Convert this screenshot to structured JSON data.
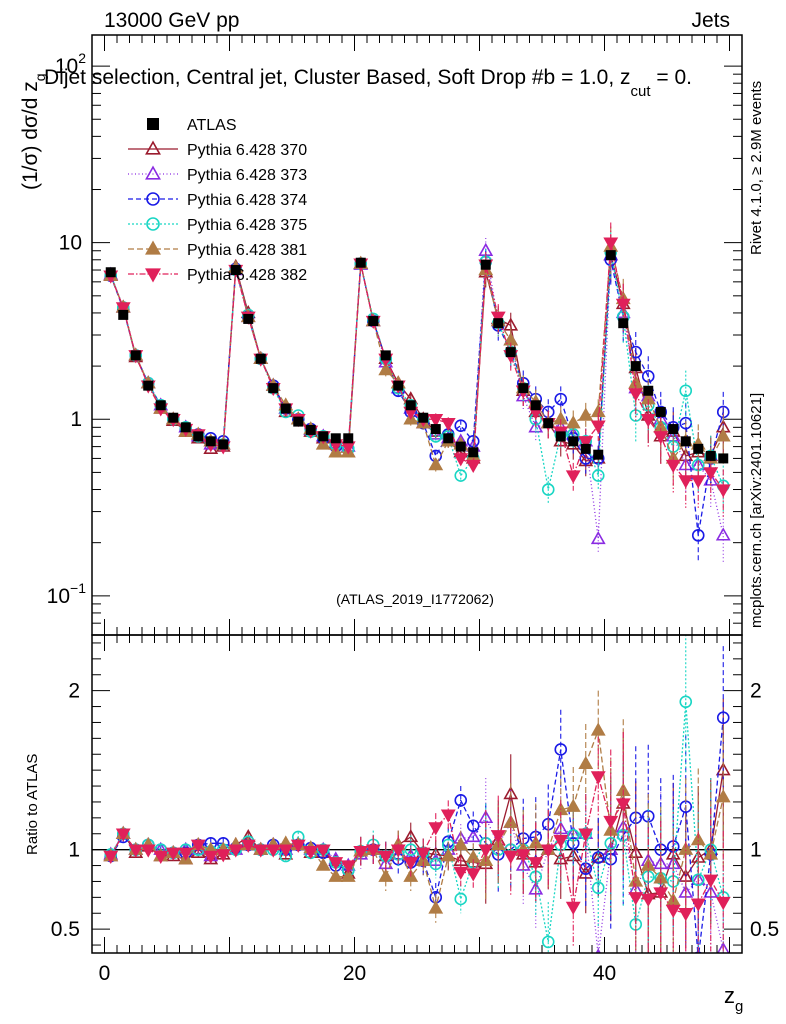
{
  "header": {
    "energy": "13000 GeV pp",
    "category": "Jets",
    "selection": "Dijet selection, Central jet, Cluster Based, Soft Drop #b = 1.0, z",
    "selection_sub": "cut",
    "selection_tail": " = 0.",
    "watermark_top": "Rivet 4.1.0, ≥ 2.9M events",
    "watermark_bottom": "mcplots.cern.ch [arXiv:2401.10621]",
    "analysis_id": "(ATLAS_2019_I1772062)"
  },
  "colors": {
    "ATLAS": "#000000",
    "p370": "#9b1b2e",
    "p373": "#8a2be2",
    "p374": "#1a1ae6",
    "p375": "#19d6c4",
    "p381": "#b07c45",
    "p382": "#e0205a"
  },
  "chart_data": [
    {
      "type": "scatter",
      "name": "main",
      "ylabel": "(1/σ) dσ/d z",
      "ylabel_sub": "g",
      "yscale": "log",
      "ylim": [
        0.06,
        150
      ],
      "xlim": [
        -1,
        51
      ],
      "yticks": [
        {
          "v": 0.1,
          "base": "10",
          "exp": "−1"
        },
        {
          "v": 1,
          "base": "1",
          "exp": ""
        },
        {
          "v": 10,
          "base": "10",
          "exp": ""
        },
        {
          "v": 100,
          "base": "10",
          "exp": "2"
        }
      ],
      "legend": [
        {
          "key": "ATLAS",
          "label": "ATLAS"
        },
        {
          "key": "p370",
          "label": "Pythia 6.428 370"
        },
        {
          "key": "p373",
          "label": "Pythia 6.428 373"
        },
        {
          "key": "p374",
          "label": "Pythia 6.428 374"
        },
        {
          "key": "p375",
          "label": "Pythia 6.428 375"
        },
        {
          "key": "p381",
          "label": "Pythia 6.428 381"
        },
        {
          "key": "p382",
          "label": "Pythia 6.428 382"
        }
      ],
      "x": [
        0.5,
        1.5,
        2.5,
        3.5,
        4.5,
        5.5,
        6.5,
        7.5,
        8.5,
        9.5,
        10.5,
        11.5,
        12.5,
        13.5,
        14.5,
        15.5,
        16.5,
        17.5,
        18.5,
        19.5,
        20.5,
        21.5,
        22.5,
        23.5,
        24.5,
        25.5,
        26.5,
        27.5,
        28.5,
        29.5,
        30.5,
        31.5,
        32.5,
        33.5,
        34.5,
        35.5,
        36.5,
        37.5,
        38.5,
        39.5,
        40.5,
        41.5,
        42.5,
        43.5,
        44.5,
        45.5,
        46.5,
        47.5,
        48.5,
        49.5
      ],
      "series": [
        {
          "key": "ATLAS",
          "values": [
            6.8,
            3.9,
            2.3,
            1.55,
            1.2,
            1.02,
            0.9,
            0.8,
            0.75,
            0.72,
            7.0,
            3.7,
            2.2,
            1.5,
            1.15,
            0.97,
            0.87,
            0.8,
            0.78,
            0.78,
            7.7,
            3.6,
            2.3,
            1.55,
            1.2,
            1.02,
            0.88,
            0.78,
            0.7,
            0.65,
            7.5,
            3.5,
            2.4,
            1.5,
            1.2,
            0.95,
            0.8,
            0.75,
            0.68,
            0.63,
            8.5,
            3.5,
            2.0,
            1.45,
            1.1,
            0.88,
            0.75,
            0.68,
            0.62,
            0.6
          ]
        },
        {
          "key": "p370",
          "values": [
            6.5,
            4.3,
            2.25,
            1.6,
            1.15,
            0.98,
            0.85,
            0.78,
            0.68,
            0.7,
            7.3,
            4.0,
            2.2,
            1.55,
            1.1,
            1.0,
            0.85,
            0.78,
            0.72,
            0.65,
            7.6,
            3.6,
            2.2,
            1.6,
            1.3,
            1.0,
            0.85,
            0.75,
            0.65,
            0.6,
            6.8,
            3.7,
            3.4,
            1.45,
            1.1,
            0.95,
            0.75,
            0.72,
            0.58,
            0.6,
            8.5,
            4.5,
            1.95,
            1.05,
            0.8,
            0.85,
            0.62,
            0.65,
            0.62,
            0.9
          ]
        },
        {
          "key": "p373",
          "values": [
            6.6,
            4.3,
            2.3,
            1.6,
            1.2,
            1.0,
            0.9,
            0.8,
            0.72,
            0.72,
            7.0,
            3.8,
            2.2,
            1.55,
            1.15,
            1.0,
            0.87,
            0.8,
            0.73,
            0.7,
            7.5,
            3.6,
            2.1,
            1.5,
            1.15,
            0.95,
            0.82,
            0.78,
            0.75,
            0.7,
            9.0,
            3.6,
            2.8,
            1.35,
            0.9,
            0.95,
            0.9,
            0.82,
            0.75,
            0.21,
            8.5,
            4.0,
            1.5,
            1.35,
            1.0,
            0.8,
            0.55,
            0.55,
            0.45,
            0.22
          ]
        },
        {
          "key": "p374",
          "values": [
            6.5,
            4.2,
            2.3,
            1.6,
            1.2,
            1.0,
            0.88,
            0.82,
            0.78,
            0.75,
            7.1,
            3.8,
            2.2,
            1.55,
            1.15,
            1.0,
            0.88,
            0.78,
            0.7,
            0.68,
            7.6,
            3.6,
            2.2,
            1.45,
            1.1,
            0.95,
            0.62,
            0.82,
            0.92,
            0.75,
            7.8,
            3.4,
            2.4,
            1.6,
            1.3,
            1.1,
            1.3,
            0.78,
            0.6,
            0.6,
            8.0,
            3.8,
            2.4,
            1.75,
            1.1,
            0.9,
            0.95,
            0.22,
            0.6,
            1.1
          ]
        },
        {
          "key": "p375",
          "values": [
            6.6,
            4.3,
            2.3,
            1.6,
            1.2,
            1.0,
            0.9,
            0.8,
            0.74,
            0.72,
            7.0,
            3.9,
            2.2,
            1.5,
            1.1,
            1.05,
            0.85,
            0.8,
            0.72,
            0.68,
            7.6,
            3.7,
            2.2,
            1.5,
            1.2,
            1.0,
            0.8,
            0.8,
            0.48,
            0.6,
            7.8,
            3.5,
            2.4,
            1.5,
            1.0,
            0.4,
            0.82,
            0.82,
            0.75,
            0.48,
            8.8,
            3.8,
            1.05,
            1.2,
            0.9,
            0.7,
            1.45,
            0.55,
            0.62,
            0.42
          ]
        },
        {
          "key": "p381",
          "values": [
            6.5,
            4.3,
            2.3,
            1.6,
            1.15,
            1.0,
            0.85,
            0.82,
            0.75,
            0.72,
            7.2,
            3.8,
            2.2,
            1.55,
            1.2,
            1.0,
            0.88,
            0.72,
            0.65,
            0.65,
            7.6,
            3.6,
            1.9,
            1.6,
            1.0,
            0.95,
            0.55,
            0.75,
            0.72,
            0.62,
            7.0,
            3.6,
            2.8,
            1.5,
            1.25,
            0.95,
            1.0,
            0.95,
            1.05,
            1.1,
            9.5,
            4.8,
            1.6,
            1.3,
            0.9,
            0.6,
            0.75,
            0.72,
            0.6,
            0.8
          ]
        },
        {
          "key": "p382",
          "values": [
            6.5,
            4.3,
            2.3,
            1.55,
            1.15,
            1.0,
            0.88,
            0.82,
            0.72,
            0.7,
            7.0,
            3.8,
            2.2,
            1.5,
            1.15,
            1.0,
            0.86,
            0.8,
            0.72,
            0.7,
            7.6,
            3.6,
            2.2,
            1.55,
            1.1,
            1.0,
            1.0,
            0.95,
            0.6,
            0.55,
            7.5,
            3.8,
            2.3,
            1.45,
            1.1,
            0.95,
            0.85,
            0.48,
            0.75,
            0.92,
            10.0,
            4.5,
            1.4,
            1.0,
            0.8,
            0.55,
            0.45,
            0.45,
            0.5,
            0.4
          ]
        }
      ]
    },
    {
      "type": "scatter",
      "name": "ratio",
      "ylabel": "Ratio to ATLAS",
      "xlabel": "z",
      "xlabel_sub": "g",
      "ylim": [
        0.35,
        2.35
      ],
      "xlim": [
        -1,
        51
      ],
      "reference_line": 1,
      "yticks": [
        0.5,
        1,
        2
      ],
      "xticks": [
        0,
        20,
        40
      ],
      "x": [
        0.5,
        1.5,
        2.5,
        3.5,
        4.5,
        5.5,
        6.5,
        7.5,
        8.5,
        9.5,
        10.5,
        11.5,
        12.5,
        13.5,
        14.5,
        15.5,
        16.5,
        17.5,
        18.5,
        19.5,
        20.5,
        21.5,
        22.5,
        23.5,
        24.5,
        25.5,
        26.5,
        27.5,
        28.5,
        29.5,
        30.5,
        31.5,
        32.5,
        33.5,
        34.5,
        35.5,
        36.5,
        37.5,
        38.5,
        39.5,
        40.5,
        41.5,
        42.5,
        43.5,
        44.5,
        45.5,
        46.5,
        47.5,
        48.5,
        49.5
      ],
      "series": [
        {
          "key": "p370",
          "values": [
            0.96,
            1.1,
            0.98,
            1.02,
            0.96,
            0.96,
            0.94,
            0.98,
            0.94,
            0.97,
            1.03,
            1.08,
            1.0,
            1.03,
            0.97,
            1.03,
            0.98,
            0.98,
            0.93,
            0.85,
            0.99,
            1.0,
            0.96,
            1.03,
            1.08,
            0.98,
            0.97,
            0.96,
            0.93,
            0.92,
            0.91,
            1.06,
            1.35,
            0.97,
            0.92,
            1.0,
            0.94,
            0.96,
            0.85,
            0.95,
            1.0,
            1.29,
            0.98,
            0.72,
            0.73,
            0.97,
            0.83,
            0.95,
            1.0,
            1.5
          ]
        },
        {
          "key": "p373",
          "values": [
            0.97,
            1.1,
            1.0,
            1.03,
            1.0,
            0.98,
            1.0,
            1.0,
            0.96,
            1.0,
            1.0,
            1.03,
            1.0,
            1.03,
            1.0,
            1.03,
            1.0,
            1.0,
            0.94,
            0.9,
            0.97,
            1.0,
            0.91,
            0.97,
            0.96,
            0.93,
            0.93,
            1.0,
            1.07,
            1.08,
            1.2,
            1.03,
            1.17,
            0.9,
            0.75,
            1.0,
            1.13,
            1.1,
            1.1,
            0.33,
            1.0,
            1.14,
            0.75,
            0.93,
            0.91,
            0.91,
            0.73,
            0.81,
            0.73,
            0.37
          ]
        },
        {
          "key": "p374",
          "values": [
            0.96,
            1.08,
            1.0,
            1.03,
            1.0,
            0.98,
            0.98,
            1.03,
            1.04,
            1.04,
            1.01,
            1.03,
            1.0,
            1.03,
            1.0,
            1.03,
            1.01,
            0.98,
            0.9,
            0.87,
            0.99,
            1.0,
            0.96,
            0.94,
            0.92,
            0.93,
            0.7,
            1.05,
            1.31,
            1.15,
            1.04,
            0.97,
            1.0,
            1.07,
            1.08,
            1.16,
            1.63,
            1.04,
            0.88,
            0.95,
            0.94,
            1.09,
            1.2,
            1.21,
            1.0,
            1.02,
            1.27,
            0.32,
            0.97,
            1.83
          ]
        },
        {
          "key": "p375",
          "values": [
            0.97,
            1.1,
            1.0,
            1.03,
            1.0,
            0.98,
            1.0,
            1.0,
            0.99,
            1.0,
            1.0,
            1.05,
            1.0,
            1.0,
            0.96,
            1.08,
            0.98,
            1.0,
            0.92,
            0.87,
            0.99,
            1.03,
            0.96,
            0.97,
            1.0,
            0.98,
            0.91,
            1.03,
            0.69,
            0.92,
            1.04,
            1.0,
            1.0,
            1.0,
            0.83,
            0.42,
            1.03,
            1.09,
            1.1,
            0.76,
            1.04,
            1.09,
            0.53,
            0.83,
            0.82,
            0.8,
            1.93,
            0.81,
            1.0,
            0.7
          ]
        },
        {
          "key": "p381",
          "values": [
            0.96,
            1.1,
            1.0,
            1.03,
            0.96,
            0.98,
            0.94,
            1.03,
            1.0,
            1.0,
            1.03,
            1.03,
            1.0,
            1.03,
            1.04,
            1.03,
            1.01,
            0.9,
            0.83,
            0.83,
            0.99,
            1.0,
            0.83,
            1.03,
            0.83,
            0.93,
            0.63,
            0.96,
            1.03,
            0.95,
            0.93,
            1.03,
            1.17,
            1.0,
            1.04,
            1.0,
            1.25,
            1.27,
            1.54,
            1.75,
            1.12,
            1.37,
            0.8,
            0.9,
            0.82,
            0.68,
            1.0,
            1.06,
            0.97,
            1.33
          ]
        },
        {
          "key": "p382",
          "values": [
            0.96,
            1.1,
            1.0,
            1.0,
            0.96,
            0.98,
            0.98,
            1.03,
            0.96,
            0.97,
            1.0,
            1.03,
            1.0,
            1.0,
            1.0,
            1.03,
            0.99,
            1.0,
            0.92,
            0.9,
            0.99,
            1.0,
            0.96,
            1.0,
            0.92,
            0.98,
            1.14,
            1.22,
            0.86,
            0.85,
            1.0,
            1.09,
            0.96,
            0.97,
            0.92,
            1.0,
            1.06,
            0.64,
            1.1,
            1.46,
            1.18,
            1.29,
            0.7,
            0.69,
            0.73,
            0.62,
            0.6,
            0.66,
            0.81,
            0.67
          ]
        }
      ]
    }
  ]
}
